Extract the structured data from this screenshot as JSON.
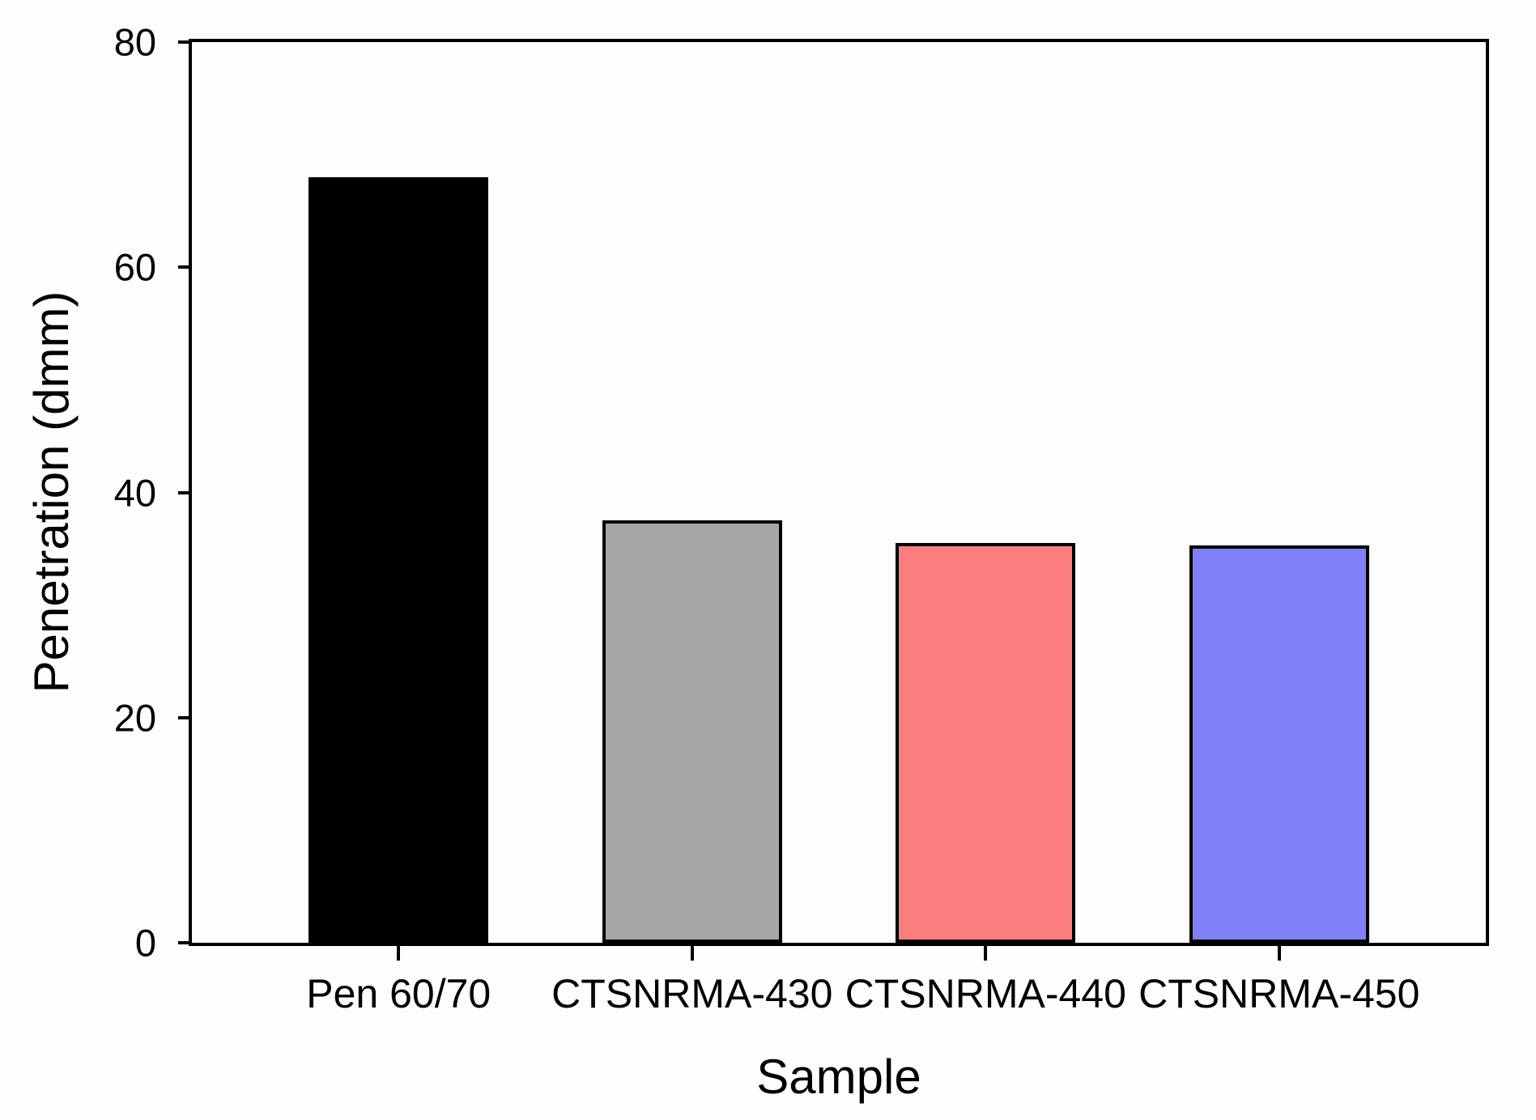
{
  "chart_data": {
    "type": "bar",
    "title": "",
    "xlabel": "Sample",
    "ylabel": "Penetration (dmm)",
    "categories": [
      "Pen 60/70",
      "CTSNRMA-430",
      "CTSNRMA-440",
      "CTSNRMA-450"
    ],
    "values": [
      68,
      37.5,
      35.5,
      35.3
    ],
    "bar_colors": [
      "#000000",
      "#a6a6a6",
      "#fb7e7e",
      "#8080f8"
    ],
    "bar_border_color": "#000000",
    "ylim": [
      0,
      80
    ],
    "yticks": [
      0,
      20,
      40,
      60,
      80
    ],
    "grid": false,
    "legend_position": "none",
    "frame": true,
    "background_color": "#fdfdfd"
  }
}
